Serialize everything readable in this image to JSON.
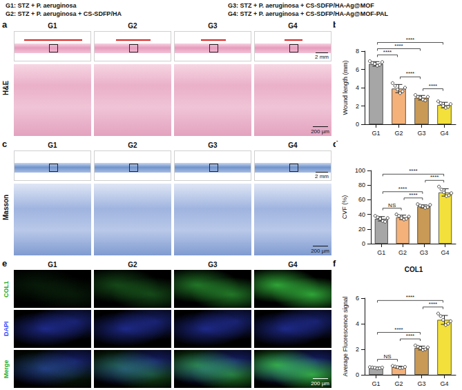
{
  "header": {
    "groups": [
      "G1: STZ + P. aeruginosa",
      "G2: STZ + P. aeruginosa + CS-SDFP/HA",
      "G3: STZ + P. aeruginosa + CS-SDFP/HA-Ag@MOF",
      "G4: STZ + P. aeruginosa + CS-SDFP/HA-Ag@MOF-PAL"
    ]
  },
  "image_panels": [
    {
      "letter": "a",
      "stain": "H&E",
      "groups": [
        "G1",
        "G2",
        "G3",
        "G4"
      ],
      "scale_bars": [
        "2 mm",
        "200 µm"
      ]
    },
    {
      "letter": "c",
      "stain": "Masson",
      "groups": [
        "G1",
        "G2",
        "G3",
        "G4"
      ],
      "scale_bars": [
        "2 mm",
        "200 µm"
      ]
    },
    {
      "letter": "e",
      "channels": [
        "COL1",
        "DAPI",
        "Merge"
      ],
      "groups": [
        "G1",
        "G2",
        "G3",
        "G4"
      ],
      "scale_bars": [
        "200 µm"
      ]
    }
  ],
  "chart_data": [
    {
      "type": "bar",
      "panel": "b",
      "y_label": "Wound length (mm)",
      "categories": [
        "G1",
        "G2",
        "G3",
        "G4"
      ],
      "values": [
        6.6,
        3.9,
        2.9,
        2.1
      ],
      "errors": [
        0.25,
        0.45,
        0.25,
        0.3
      ],
      "points": [
        [
          6.9,
          6.7,
          6.6,
          6.4,
          6.5,
          6.8
        ],
        [
          4.5,
          4.2,
          3.8,
          3.4,
          3.6,
          4.0
        ],
        [
          3.2,
          3.0,
          2.9,
          2.7,
          2.6,
          3.0
        ],
        [
          2.5,
          2.3,
          2.0,
          1.8,
          1.9,
          2.2
        ]
      ],
      "colors": [
        "#a6a6a6",
        "#f4b27a",
        "#c99a55",
        "#f3e03b"
      ],
      "ylim": [
        0,
        8
      ],
      "yticks": [
        0,
        2,
        4,
        6,
        8
      ],
      "grid": false,
      "significance": [
        {
          "pair": [
            "G2",
            "G3"
          ],
          "label": "****"
        },
        {
          "pair": [
            "G3",
            "G4"
          ],
          "label": "****"
        },
        {
          "pair": [
            "G1",
            "G2"
          ],
          "label": "****"
        },
        {
          "pair": [
            "G1",
            "G3"
          ],
          "label": "****"
        },
        {
          "pair": [
            "G1",
            "G4"
          ],
          "label": "****"
        }
      ]
    },
    {
      "type": "bar",
      "panel": "d",
      "y_label": "CVF (%)",
      "categories": [
        "G1",
        "G2",
        "G3",
        "G4"
      ],
      "values": [
        34,
        36,
        51,
        70
      ],
      "errors": [
        3,
        3,
        2,
        5
      ],
      "points": [
        [
          38,
          36,
          34,
          31,
          30,
          35
        ],
        [
          40,
          38,
          35,
          33,
          34,
          37
        ],
        [
          54,
          52,
          51,
          49,
          50,
          53
        ],
        [
          78,
          74,
          70,
          65,
          66,
          69
        ]
      ],
      "colors": [
        "#a6a6a6",
        "#f4b27a",
        "#c99a55",
        "#f3e03b"
      ],
      "ylim": [
        0,
        100
      ],
      "yticks": [
        0,
        20,
        40,
        60,
        80,
        100
      ],
      "grid": false,
      "significance": [
        {
          "pair": [
            "G1",
            "G2"
          ],
          "label": "NS"
        },
        {
          "pair": [
            "G2",
            "G3"
          ],
          "label": "****"
        },
        {
          "pair": [
            "G3",
            "G4"
          ],
          "label": "****"
        },
        {
          "pair": [
            "G1",
            "G3"
          ],
          "label": "****"
        },
        {
          "pair": [
            "G1",
            "G4"
          ],
          "label": "****"
        }
      ]
    },
    {
      "type": "bar",
      "panel": "f",
      "title": "COL1",
      "y_label": "Average Fluorescence signal",
      "categories": [
        "G1",
        "G2",
        "G3",
        "G4"
      ],
      "values": [
        0.55,
        0.6,
        2.1,
        4.3
      ],
      "errors": [
        0.05,
        0.08,
        0.15,
        0.35
      ],
      "points": [
        [
          0.6,
          0.58,
          0.55,
          0.5,
          0.52,
          0.57
        ],
        [
          0.7,
          0.65,
          0.6,
          0.52,
          0.55,
          0.62
        ],
        [
          2.3,
          2.2,
          2.1,
          1.95,
          2.0,
          2.15
        ],
        [
          4.8,
          4.6,
          4.3,
          3.9,
          4.0,
          4.2
        ]
      ],
      "colors": [
        "#a6a6a6",
        "#f4b27a",
        "#c99a55",
        "#f3e03b"
      ],
      "ylim": [
        0,
        6
      ],
      "yticks": [
        0,
        2,
        4,
        6
      ],
      "grid": false,
      "significance": [
        {
          "pair": [
            "G1",
            "G2"
          ],
          "label": "NS"
        },
        {
          "pair": [
            "G2",
            "G3"
          ],
          "label": "****"
        },
        {
          "pair": [
            "G3",
            "G4"
          ],
          "label": "****"
        },
        {
          "pair": [
            "G1",
            "G3"
          ],
          "label": "****"
        },
        {
          "pair": [
            "G1",
            "G4"
          ],
          "label": "****"
        }
      ]
    }
  ]
}
